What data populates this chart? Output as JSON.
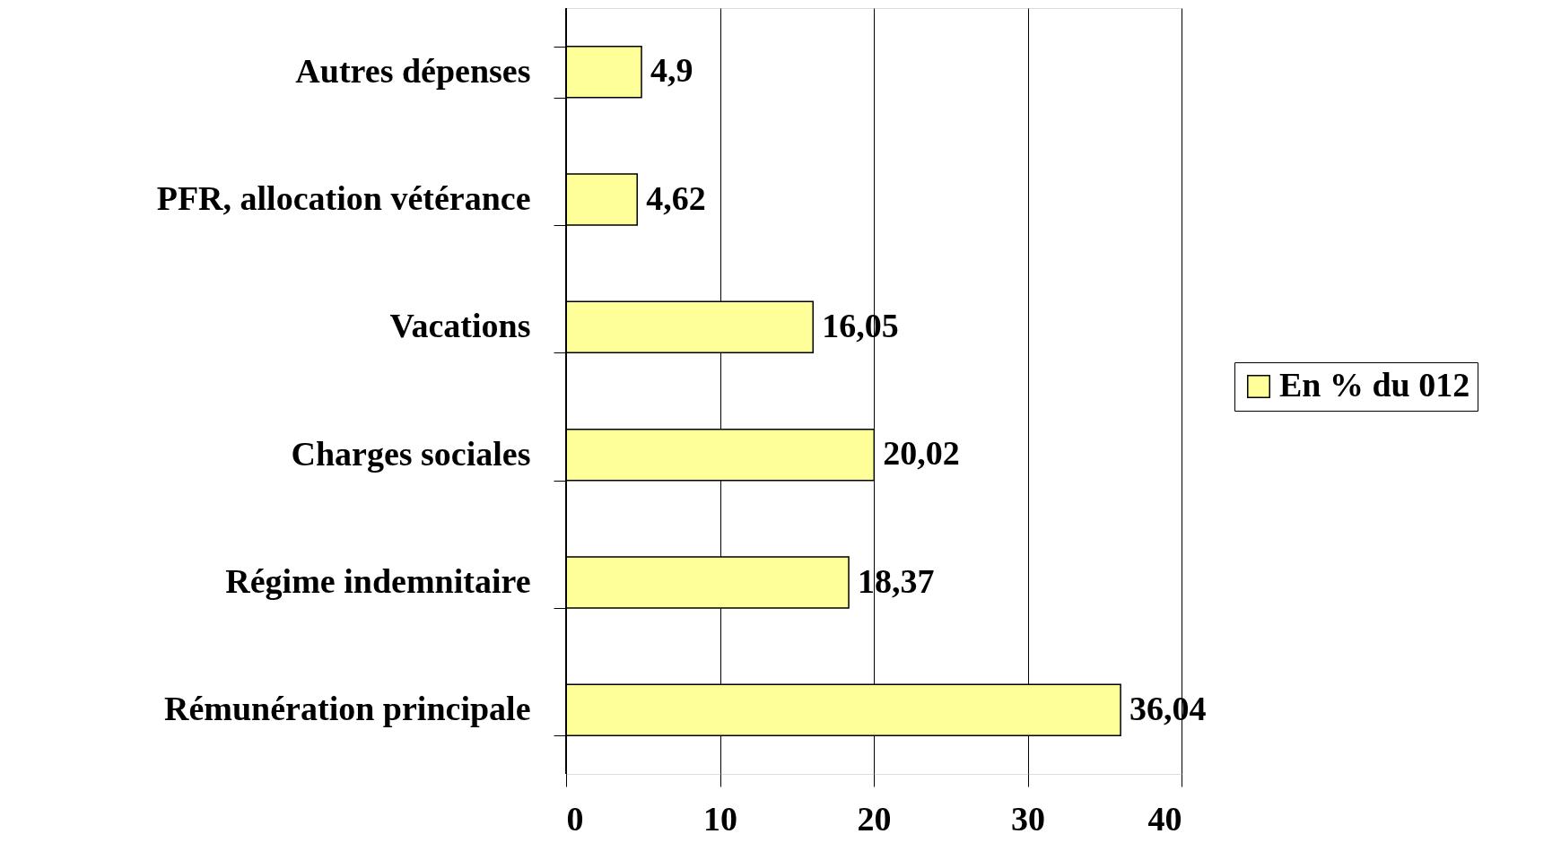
{
  "chart_data": {
    "type": "bar",
    "orientation": "horizontal",
    "categories": [
      "Autres dépenses",
      "PFR, allocation vétérance",
      "Vacations",
      "Charges sociales",
      "Régime indemnitaire",
      "Rémunération principale"
    ],
    "series": [
      {
        "name": "En % du 012",
        "color": "#ffff99",
        "values": [
          4.9,
          4.62,
          16.05,
          20.02,
          18.37,
          36.04
        ],
        "value_labels": [
          "4,9",
          "4,62",
          "16,05",
          "20,02",
          "18,37",
          "36,04"
        ]
      }
    ],
    "xlim": [
      0,
      40
    ],
    "xticks": [
      0,
      10,
      20,
      30,
      40
    ],
    "grid": "x",
    "legend": "right"
  }
}
